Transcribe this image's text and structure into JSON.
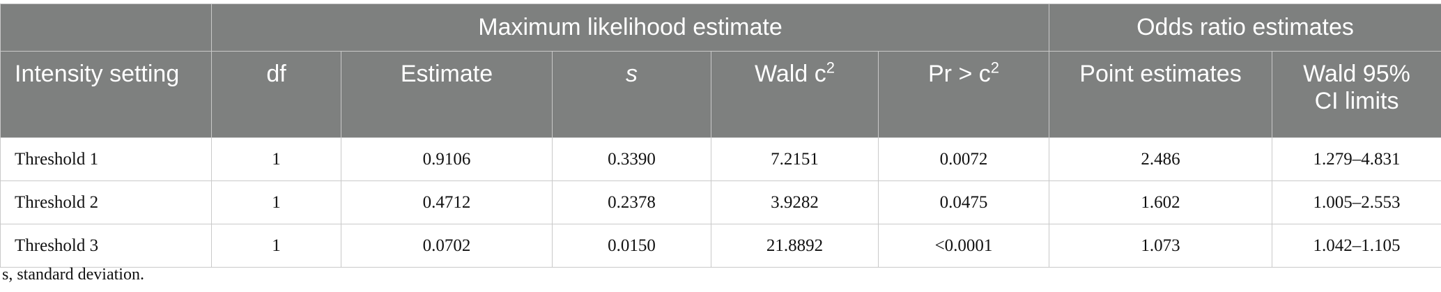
{
  "header": {
    "groups": {
      "mle": "Maximum likelihood estimate",
      "odds": "Odds ratio estimates"
    },
    "columns": {
      "intensity": "Intensity setting",
      "df": "df",
      "estimate": "Estimate",
      "s": "s",
      "wald_base": "Wald c",
      "wald_sup": "2",
      "pr_base": "Pr > c",
      "pr_sup": "2",
      "point": "Point estimates",
      "ci_line1": "Wald 95%",
      "ci_line2": "CI limits"
    }
  },
  "rows": [
    {
      "setting": "Threshold 1",
      "df": "1",
      "estimate": "0.9106",
      "s": "0.3390",
      "wald": "7.2151",
      "pr": "0.0072",
      "point": "2.486",
      "ci": "1.279–4.831"
    },
    {
      "setting": "Threshold 2",
      "df": "1",
      "estimate": "0.4712",
      "s": "0.2378",
      "wald": "3.9282",
      "pr": "0.0475",
      "point": "1.602",
      "ci": "1.005–2.553"
    },
    {
      "setting": "Threshold 3",
      "df": "1",
      "estimate": "0.0702",
      "s": "0.0150",
      "wald": "21.8892",
      "pr": "<0.0001",
      "point": "1.073",
      "ci": "1.042–1.105"
    }
  ],
  "footnote": "s, standard deviation."
}
